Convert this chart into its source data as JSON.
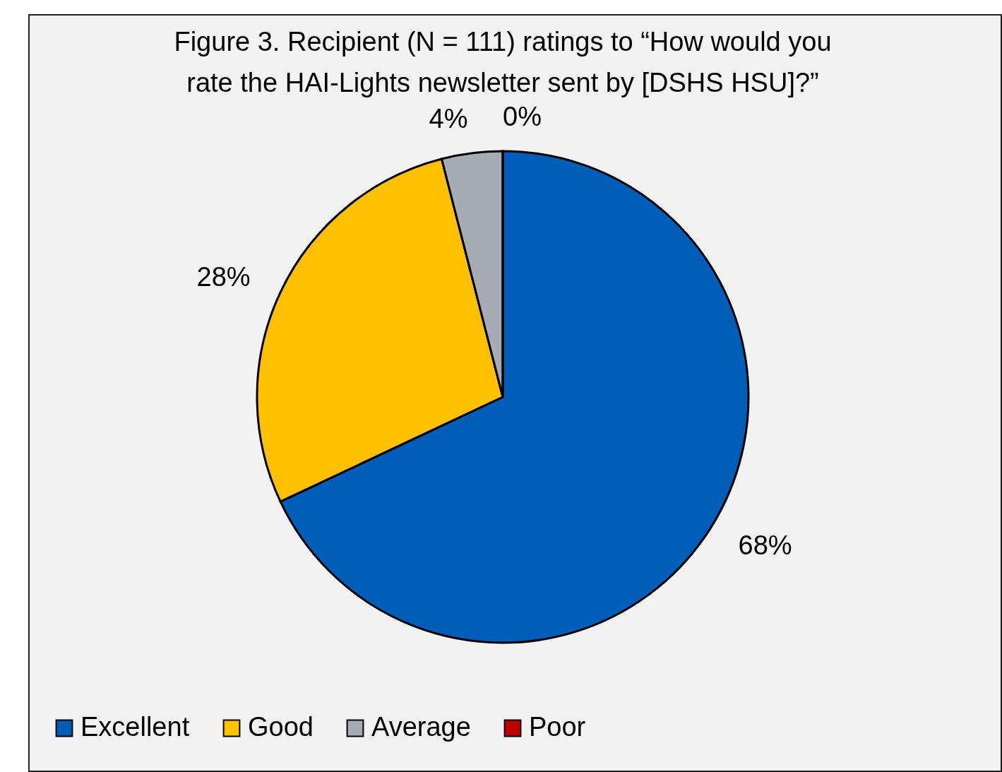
{
  "chart_data": {
    "type": "pie",
    "title": "Figure 3. Recipient (N = 111) ratings to “How would you rate the HAI-Lights newsletter sent by [DSHS HSU]?”",
    "categories": [
      "Excellent",
      "Good",
      "Average",
      "Poor"
    ],
    "values": [
      68,
      28,
      4,
      0
    ],
    "colors": [
      "#005eb8",
      "#ffc000",
      "#a5acb4",
      "#c00000"
    ],
    "value_labels": [
      "68%",
      "28%",
      "4%",
      "0%"
    ],
    "legend": "bottom"
  }
}
